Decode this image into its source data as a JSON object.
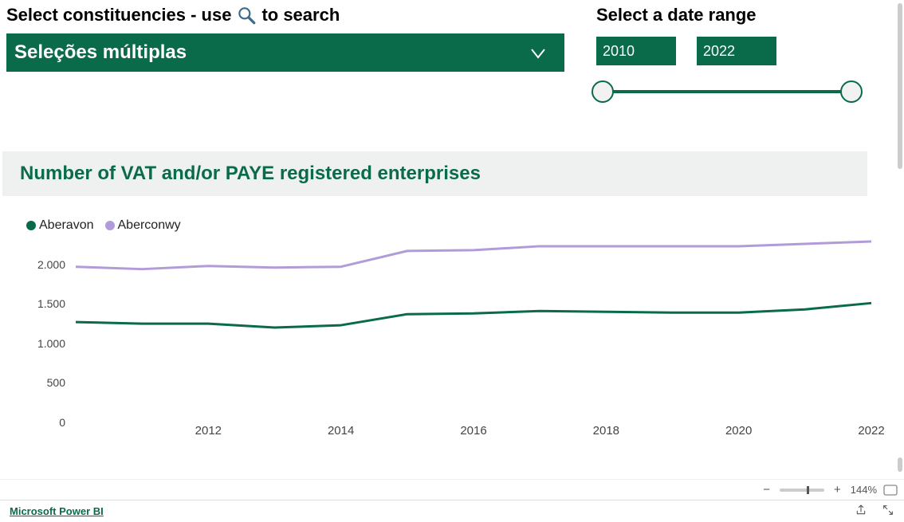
{
  "header": {
    "constituency_label_pre": "Select constituencies - use",
    "constituency_label_post": "to search",
    "date_label": "Select a date range"
  },
  "dropdown": {
    "selected_label": "Seleções múltiplas"
  },
  "date_range": {
    "from": "2010",
    "to": "2022",
    "slider_track_color": "#0a6b4a"
  },
  "chart": {
    "title": "Number of VAT and/or PAYE registered enterprises",
    "title_color": "#0a6b4a",
    "title_bg": "#eef1ef",
    "background": "#ffffff",
    "y": {
      "min": 0,
      "max": 2300,
      "step": 500,
      "ticks": [
        0,
        500,
        1000,
        1500,
        2000
      ],
      "tick_labels": [
        "0",
        "500",
        "1.000",
        "1.500",
        "2.000"
      ]
    },
    "x": {
      "min": 2010,
      "max": 2022,
      "tick_step": 2,
      "ticks": [
        2012,
        2014,
        2016,
        2018,
        2020,
        2022
      ]
    },
    "series": [
      {
        "name": "Aberavon",
        "color": "#0a6b4a",
        "stroke_width": 3,
        "years": [
          2010,
          2011,
          2012,
          2013,
          2014,
          2015,
          2016,
          2017,
          2018,
          2019,
          2020,
          2021,
          2022
        ],
        "values": [
          1270,
          1250,
          1250,
          1200,
          1230,
          1370,
          1380,
          1410,
          1400,
          1390,
          1390,
          1430,
          1510
        ]
      },
      {
        "name": "Aberconwy",
        "color": "#b19cd9",
        "stroke_width": 3,
        "years": [
          2010,
          2011,
          2012,
          2013,
          2014,
          2015,
          2016,
          2017,
          2018,
          2019,
          2020,
          2021,
          2022
        ],
        "values": [
          1970,
          1940,
          1980,
          1960,
          1970,
          2170,
          2180,
          2230,
          2230,
          2230,
          2230,
          2260,
          2290
        ]
      }
    ]
  },
  "zoom": {
    "level_label": "144%",
    "thumb_pct": 60
  },
  "footer": {
    "brand": "Microsoft Power BI"
  }
}
